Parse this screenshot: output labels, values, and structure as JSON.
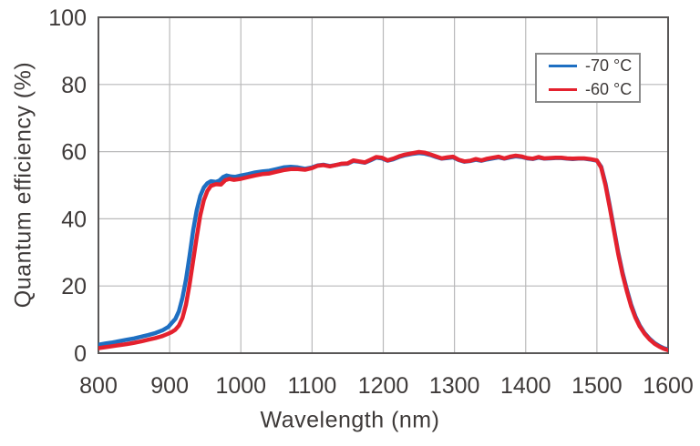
{
  "chart_data": {
    "type": "line",
    "title": "",
    "xlabel": "Wavelength (nm)",
    "ylabel": "Quantum efficiency (%)",
    "xlim": [
      800,
      1600
    ],
    "ylim": [
      0,
      100
    ],
    "x_ticks": [
      800,
      900,
      1000,
      1100,
      1200,
      1300,
      1400,
      1500,
      1600
    ],
    "y_ticks": [
      0,
      20,
      40,
      60,
      80,
      100
    ],
    "grid": true,
    "legend_position": "top-right",
    "frame_color": "#595757",
    "grid_color": "#b9b9ba",
    "text_color": "#3e3a39",
    "series": [
      {
        "name": "-70 °C",
        "color": "#1e6fc2",
        "points": [
          [
            800,
            2.5
          ],
          [
            810,
            2.9
          ],
          [
            820,
            3.2
          ],
          [
            830,
            3.6
          ],
          [
            840,
            4.0
          ],
          [
            850,
            4.4
          ],
          [
            860,
            4.9
          ],
          [
            870,
            5.4
          ],
          [
            880,
            6.0
          ],
          [
            890,
            6.8
          ],
          [
            898,
            7.8
          ],
          [
            903,
            9.0
          ],
          [
            908,
            10.2
          ],
          [
            913,
            12.5
          ],
          [
            918,
            16.5
          ],
          [
            923,
            22.0
          ],
          [
            928,
            29.0
          ],
          [
            933,
            36.5
          ],
          [
            938,
            42.5
          ],
          [
            943,
            46.8
          ],
          [
            948,
            49.3
          ],
          [
            953,
            50.6
          ],
          [
            958,
            51.2
          ],
          [
            965,
            51.0
          ],
          [
            970,
            51.4
          ],
          [
            975,
            52.4
          ],
          [
            980,
            52.9
          ],
          [
            986,
            52.6
          ],
          [
            992,
            52.5
          ],
          [
            1000,
            52.9
          ],
          [
            1010,
            53.3
          ],
          [
            1020,
            53.8
          ],
          [
            1030,
            54.1
          ],
          [
            1040,
            54.3
          ],
          [
            1050,
            54.8
          ],
          [
            1060,
            55.3
          ],
          [
            1070,
            55.5
          ],
          [
            1080,
            55.3
          ],
          [
            1090,
            54.9
          ],
          [
            1100,
            55.3
          ],
          [
            1108,
            55.9
          ],
          [
            1116,
            56.1
          ],
          [
            1125,
            55.7
          ],
          [
            1133,
            56.0
          ],
          [
            1141,
            56.3
          ],
          [
            1150,
            56.4
          ],
          [
            1158,
            57.2
          ],
          [
            1166,
            57.0
          ],
          [
            1174,
            56.7
          ],
          [
            1182,
            57.4
          ],
          [
            1190,
            58.2
          ],
          [
            1198,
            58.0
          ],
          [
            1206,
            57.3
          ],
          [
            1214,
            57.7
          ],
          [
            1222,
            58.4
          ],
          [
            1230,
            58.9
          ],
          [
            1240,
            59.3
          ],
          [
            1250,
            59.6
          ],
          [
            1258,
            59.4
          ],
          [
            1266,
            59.0
          ],
          [
            1274,
            58.4
          ],
          [
            1282,
            57.9
          ],
          [
            1290,
            58.1
          ],
          [
            1298,
            58.3
          ],
          [
            1306,
            57.5
          ],
          [
            1314,
            57.0
          ],
          [
            1322,
            57.2
          ],
          [
            1330,
            57.6
          ],
          [
            1338,
            57.3
          ],
          [
            1346,
            57.7
          ],
          [
            1354,
            58.0
          ],
          [
            1362,
            58.3
          ],
          [
            1370,
            57.9
          ],
          [
            1378,
            58.3
          ],
          [
            1386,
            58.6
          ],
          [
            1394,
            58.4
          ],
          [
            1402,
            58.0
          ],
          [
            1410,
            57.8
          ],
          [
            1418,
            58.2
          ],
          [
            1426,
            57.9
          ],
          [
            1434,
            58.0
          ],
          [
            1442,
            58.1
          ],
          [
            1450,
            58.1
          ],
          [
            1458,
            57.9
          ],
          [
            1466,
            57.8
          ],
          [
            1474,
            57.9
          ],
          [
            1482,
            57.9
          ],
          [
            1490,
            57.7
          ],
          [
            1500,
            57.3
          ],
          [
            1506,
            55.5
          ],
          [
            1512,
            50.5
          ],
          [
            1518,
            44.0
          ],
          [
            1524,
            37.0
          ],
          [
            1530,
            30.0
          ],
          [
            1536,
            24.0
          ],
          [
            1542,
            19.0
          ],
          [
            1548,
            14.5
          ],
          [
            1554,
            11.0
          ],
          [
            1560,
            8.3
          ],
          [
            1567,
            6.0
          ],
          [
            1574,
            4.3
          ],
          [
            1581,
            3.0
          ],
          [
            1588,
            2.1
          ],
          [
            1594,
            1.5
          ],
          [
            1600,
            1.1
          ]
        ]
      },
      {
        "name": "-60 °C",
        "color": "#e4212e",
        "points": [
          [
            800,
            1.5
          ],
          [
            810,
            1.8
          ],
          [
            820,
            2.1
          ],
          [
            830,
            2.4
          ],
          [
            840,
            2.7
          ],
          [
            850,
            3.1
          ],
          [
            860,
            3.5
          ],
          [
            870,
            4.0
          ],
          [
            880,
            4.5
          ],
          [
            890,
            5.1
          ],
          [
            898,
            5.8
          ],
          [
            903,
            6.3
          ],
          [
            908,
            7.0
          ],
          [
            913,
            8.2
          ],
          [
            918,
            10.5
          ],
          [
            923,
            14.5
          ],
          [
            928,
            20.5
          ],
          [
            933,
            27.5
          ],
          [
            938,
            34.5
          ],
          [
            943,
            41.0
          ],
          [
            948,
            45.5
          ],
          [
            953,
            48.3
          ],
          [
            958,
            49.8
          ],
          [
            965,
            50.3
          ],
          [
            972,
            50.2
          ],
          [
            978,
            51.5
          ],
          [
            984,
            51.9
          ],
          [
            990,
            51.6
          ],
          [
            1000,
            51.9
          ],
          [
            1010,
            52.4
          ],
          [
            1020,
            52.9
          ],
          [
            1030,
            53.3
          ],
          [
            1040,
            53.5
          ],
          [
            1050,
            54.0
          ],
          [
            1060,
            54.5
          ],
          [
            1070,
            54.8
          ],
          [
            1080,
            54.8
          ],
          [
            1090,
            54.6
          ],
          [
            1100,
            55.1
          ],
          [
            1108,
            55.8
          ],
          [
            1116,
            56.0
          ],
          [
            1125,
            55.6
          ],
          [
            1133,
            56.0
          ],
          [
            1141,
            56.4
          ],
          [
            1150,
            56.5
          ],
          [
            1158,
            57.4
          ],
          [
            1166,
            57.1
          ],
          [
            1174,
            56.8
          ],
          [
            1182,
            57.6
          ],
          [
            1190,
            58.4
          ],
          [
            1198,
            58.2
          ],
          [
            1206,
            57.4
          ],
          [
            1214,
            57.9
          ],
          [
            1222,
            58.6
          ],
          [
            1230,
            59.1
          ],
          [
            1240,
            59.5
          ],
          [
            1250,
            59.9
          ],
          [
            1258,
            59.7
          ],
          [
            1266,
            59.2
          ],
          [
            1274,
            58.6
          ],
          [
            1282,
            58.0
          ],
          [
            1290,
            58.3
          ],
          [
            1298,
            58.5
          ],
          [
            1306,
            57.6
          ],
          [
            1314,
            57.1
          ],
          [
            1322,
            57.3
          ],
          [
            1330,
            57.8
          ],
          [
            1338,
            57.4
          ],
          [
            1346,
            57.9
          ],
          [
            1354,
            58.2
          ],
          [
            1362,
            58.5
          ],
          [
            1370,
            58.0
          ],
          [
            1378,
            58.5
          ],
          [
            1386,
            58.8
          ],
          [
            1394,
            58.6
          ],
          [
            1402,
            58.1
          ],
          [
            1410,
            57.9
          ],
          [
            1418,
            58.4
          ],
          [
            1426,
            58.0
          ],
          [
            1434,
            58.1
          ],
          [
            1442,
            58.2
          ],
          [
            1450,
            58.2
          ],
          [
            1458,
            58.0
          ],
          [
            1466,
            57.9
          ],
          [
            1474,
            58.0
          ],
          [
            1482,
            58.0
          ],
          [
            1490,
            57.8
          ],
          [
            1500,
            57.4
          ],
          [
            1506,
            55.2
          ],
          [
            1512,
            50.0
          ],
          [
            1518,
            43.5
          ],
          [
            1524,
            36.5
          ],
          [
            1530,
            29.5
          ],
          [
            1536,
            23.5
          ],
          [
            1542,
            18.5
          ],
          [
            1548,
            14.0
          ],
          [
            1554,
            10.6
          ],
          [
            1560,
            8.0
          ],
          [
            1567,
            5.8
          ],
          [
            1574,
            4.1
          ],
          [
            1581,
            2.8
          ],
          [
            1588,
            1.9
          ],
          [
            1594,
            1.3
          ],
          [
            1600,
            0.9
          ]
        ]
      }
    ]
  }
}
